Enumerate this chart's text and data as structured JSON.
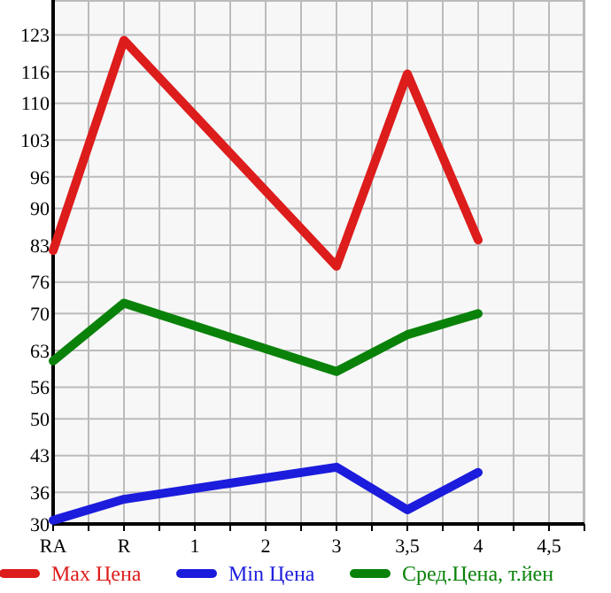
{
  "chart_data": {
    "type": "line",
    "categories": [
      "RA",
      "R",
      "1",
      "2",
      "3",
      "3,5",
      "4",
      "4,5"
    ],
    "series": [
      {
        "name": "Max Цена",
        "color": "#dd1c1c",
        "values": [
          82,
          122,
          null,
          null,
          79,
          115.6,
          84,
          null
        ]
      },
      {
        "name": "Min Цена",
        "color": "#1c1cdd",
        "values": [
          30.7,
          34.7,
          null,
          null,
          40.8,
          32.7,
          39.8,
          null
        ]
      },
      {
        "name": "Сред.Цена, т.йен",
        "color": "#0a820a",
        "values": [
          61,
          72,
          null,
          null,
          59,
          66,
          70,
          null
        ]
      }
    ],
    "ylim": [
      30,
      129.64
    ],
    "yticks": [
      30,
      36,
      43,
      50,
      56,
      63,
      70,
      76,
      83,
      90,
      96,
      103,
      110,
      116,
      123
    ],
    "grid": true,
    "legend": "bottom",
    "marker": "none",
    "line_style": "solid"
  }
}
